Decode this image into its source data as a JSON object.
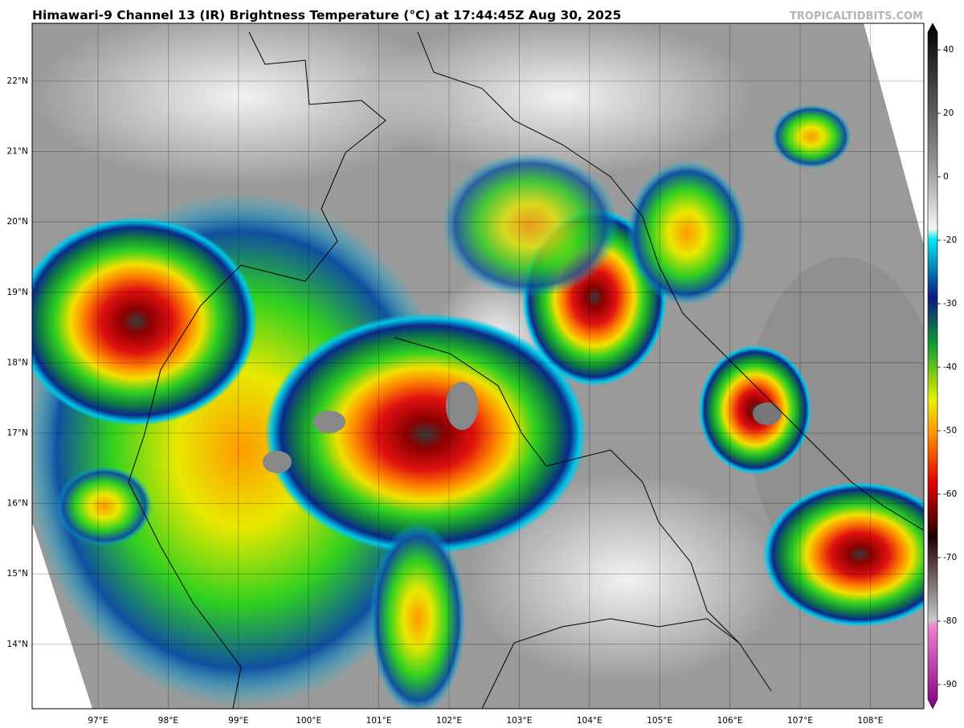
{
  "header": {
    "title": "Himawari-9 Channel 13 (IR) Brightness Temperature (°C) at 17:44:45Z Aug 30, 2025",
    "watermark": "TROPICALTIDBITS.COM"
  },
  "latitude_labels": [
    "22°N",
    "21°N",
    "20°N",
    "19°N",
    "18°N",
    "17°N",
    "16°N",
    "15°N",
    "14°N"
  ],
  "longitude_labels": [
    "97°E",
    "98°E",
    "99°E",
    "100°E",
    "101°E",
    "102°E",
    "103°E",
    "104°E",
    "105°E",
    "106°E",
    "107°E",
    "108°E"
  ],
  "colorbar": {
    "ticks": [
      40,
      20,
      0,
      -20,
      -30,
      -40,
      -50,
      -60,
      -70,
      -80,
      -90
    ]
  }
}
